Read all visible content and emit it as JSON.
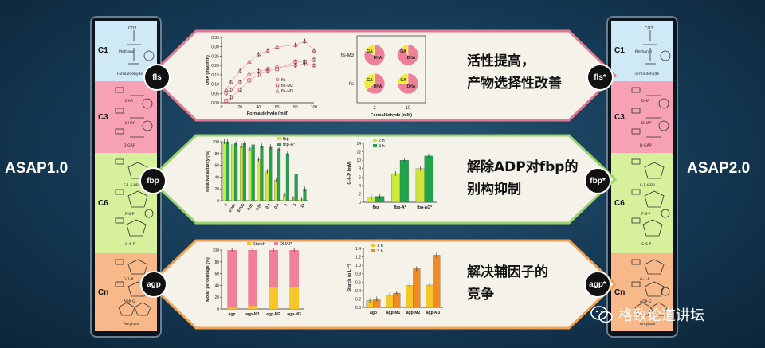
{
  "left_title": "ASAP1.0",
  "right_title": "ASAP2.0",
  "column": {
    "stages": [
      "C1",
      "C3",
      "C6",
      "Cn"
    ],
    "molecule_labels": [
      "CO2",
      "Methanol",
      "Formaldehyde",
      "DHA",
      "DHAP",
      "D-GAP",
      "F-1,6-BP",
      "F-6-P",
      "G-6-P",
      "G-1-P",
      "ADP-G",
      "Amylose"
    ]
  },
  "badges_left": [
    "fls",
    "fbp",
    "agp"
  ],
  "badges_right": [
    "fls*",
    "fbp*",
    "agp*"
  ],
  "panels": [
    {
      "text_line1": "活性提高，",
      "text_line2": "产物选择性改善"
    },
    {
      "text_line1": "解除ADP对fbp的",
      "text_line2": "别构抑制"
    },
    {
      "text_line1": "解决辅因子的",
      "text_line2": "竞争"
    }
  ],
  "watermark": "格致论道讲坛",
  "colors": {
    "c1": "#cfe9f7",
    "c3": "#f7a1b4",
    "c6": "#d7f09c",
    "cn": "#f7b88a",
    "panel": "#f5f2ea",
    "pink_border": "#e07a92",
    "green_border": "#9cd36a",
    "orange_border": "#f0a052",
    "yellow": "#f2ea3a",
    "pink": "#f08097",
    "green": "#1fa64a",
    "lime": "#cde83a",
    "orange": "#f28a20",
    "gold": "#f6c528"
  },
  "chart_data": [
    {
      "type": "scatter",
      "xlabel": "Formaldehyde (mM)",
      "ylabel": "DHA (mM/min)",
      "xlim": [
        0,
        100
      ],
      "ylim": [
        0,
        0.35
      ],
      "xticks": [
        "0",
        "20",
        "40",
        "60",
        "80",
        "100"
      ],
      "yticks": [
        "0.00",
        "0.05",
        "0.10",
        "0.15",
        "0.20",
        "0.25",
        "0.30",
        "0.35"
      ],
      "x": [
        5,
        10,
        20,
        30,
        40,
        50,
        60,
        80,
        90,
        100
      ],
      "series": [
        {
          "name": "fls",
          "values": [
            0.05,
            0.07,
            0.11,
            0.15,
            0.17,
            0.18,
            0.19,
            0.2,
            0.21,
            0.2
          ]
        },
        {
          "name": "fls-M2",
          "values": [
            0.01,
            0.03,
            0.07,
            0.12,
            0.15,
            0.17,
            0.18,
            0.22,
            0.22,
            0.23
          ]
        },
        {
          "name": "fls-M3",
          "values": [
            0.07,
            0.11,
            0.17,
            0.22,
            0.26,
            0.28,
            0.3,
            0.31,
            0.33,
            0.28
          ]
        }
      ]
    },
    {
      "type": "pie",
      "xlabel": "Formaldehyde (mM)",
      "rows": [
        "fls-M3",
        "fls"
      ],
      "columns": [
        "2",
        "10"
      ],
      "slice_labels": [
        "GA",
        "DHA"
      ],
      "ga_fraction": [
        [
          0.18,
          0.1
        ],
        [
          0.35,
          0.25
        ]
      ]
    },
    {
      "type": "bar",
      "ylabel": "Relative activity (%)",
      "ylim": [
        0,
        100
      ],
      "yticks": [
        "0",
        "20",
        "40",
        "60",
        "80",
        "100"
      ],
      "categories": [
        "0",
        "0.001",
        "0.005",
        "0.01",
        "0.05",
        "0.1",
        "0.3",
        "1",
        "5",
        "10"
      ],
      "series": [
        {
          "name": "fbp",
          "values": [
            100,
            95,
            93,
            88,
            70,
            50,
            35,
            10,
            4,
            2
          ]
        },
        {
          "name": "fbp-A*",
          "values": [
            100,
            97,
            97,
            95,
            93,
            92,
            88,
            80,
            45,
            20
          ]
        }
      ]
    },
    {
      "type": "bar",
      "ylabel": "G-6-P (mM)",
      "ylim": [
        0,
        14
      ],
      "yticks": [
        "0",
        "2",
        "4",
        "6",
        "8",
        "10",
        "12",
        "14"
      ],
      "categories": [
        "fbp",
        "fbp-A*",
        "fbp-AG*"
      ],
      "series": [
        {
          "name": "2 h",
          "values": [
            1.2,
            6.8,
            8
          ]
        },
        {
          "name": "4 h",
          "values": [
            1.4,
            10,
            11
          ]
        }
      ]
    },
    {
      "type": "bar",
      "ylabel": "Molar percentage (%)",
      "ylim": [
        0,
        100
      ],
      "yticks": [
        "0",
        "20",
        "40",
        "60",
        "80",
        "100"
      ],
      "categories": [
        "agp",
        "agp-M1",
        "agp-M2",
        "agp-M3"
      ],
      "series": [
        {
          "name": "Starch",
          "values": [
            2,
            5,
            37,
            38
          ]
        },
        {
          "name": "DHAP",
          "values": [
            100,
            100,
            100,
            100
          ]
        }
      ]
    },
    {
      "type": "bar",
      "ylabel": "Starch (g L⁻¹)",
      "ylim": [
        0,
        1.4
      ],
      "yticks": [
        "0.0",
        "0.2",
        "0.4",
        "0.6",
        "0.8",
        "1.0",
        "1.2",
        "1.4"
      ],
      "categories": [
        "agp",
        "agp-M1",
        "agp-M2",
        "agp-M3"
      ],
      "series": [
        {
          "name": "1 h",
          "values": [
            0.16,
            0.3,
            0.52,
            0.53
          ]
        },
        {
          "name": "3 h",
          "values": [
            0.2,
            0.34,
            0.92,
            1.24
          ]
        }
      ]
    }
  ]
}
